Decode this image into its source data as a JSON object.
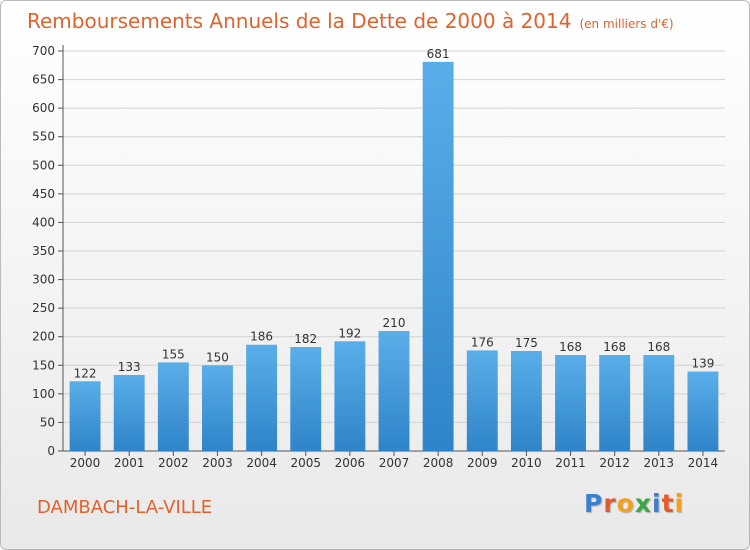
{
  "header": {
    "title": "Remboursements Annuels de la Dette de 2000 à 2014",
    "unit": "(en milliers d'€)"
  },
  "footer": {
    "commune": "DAMBACH-LA-VILLE",
    "brand": "Proxiti",
    "brand_letters": [
      {
        "ch": "P",
        "color": "#3a7fd0"
      },
      {
        "ch": "r",
        "color": "#e35a2c"
      },
      {
        "ch": "o",
        "color": "#f0a21c"
      },
      {
        "ch": "x",
        "color": "#3aa843"
      },
      {
        "ch": "i",
        "color": "#3a7fd0"
      },
      {
        "ch": "t",
        "color": "#e35a2c"
      },
      {
        "ch": "i",
        "color": "#f0a21c"
      }
    ]
  },
  "colors": {
    "accent": "#e0632d",
    "bar_top": "#5aaee8",
    "bar_bottom": "#2f84c9",
    "grid": "#d2d2d2",
    "axis_text": "#333333"
  },
  "chart_data": {
    "type": "bar",
    "title": "Remboursements Annuels de la Dette de 2000 à 2014",
    "subtitle": "(en milliers d'€)",
    "xlabel": "",
    "ylabel": "",
    "ylim": [
      0,
      700
    ],
    "yticks": [
      0,
      50,
      100,
      150,
      200,
      250,
      300,
      350,
      400,
      450,
      500,
      550,
      600,
      650,
      700
    ],
    "grid": true,
    "legend": "none",
    "categories": [
      "2000",
      "2001",
      "2002",
      "2003",
      "2004",
      "2005",
      "2006",
      "2007",
      "2008",
      "2009",
      "2010",
      "2011",
      "2012",
      "2013",
      "2014"
    ],
    "values": [
      122,
      133,
      155,
      150,
      186,
      182,
      192,
      210,
      681,
      176,
      175,
      168,
      168,
      168,
      139
    ]
  }
}
